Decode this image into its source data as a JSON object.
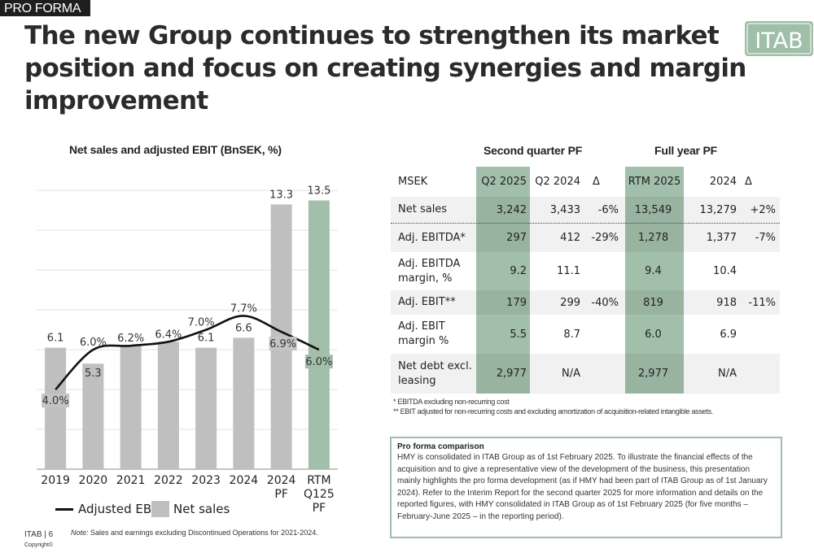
{
  "header": {
    "tag": "PRO FORMA",
    "headline": "The new Group continues to strengthen its market position and focus on creating synergies and margin improvement",
    "logo_text": "ITAB"
  },
  "colors": {
    "accent_green": "#a1bfaa",
    "bar_grey": "#bfbfbf",
    "line": "#111111"
  },
  "chart_data": {
    "type": "bar",
    "title": "Net sales and adjusted EBIT (BnSEK, %)",
    "categories": [
      "2019",
      "2020",
      "2021",
      "2022",
      "2023",
      "2024",
      "2024 PF",
      "RTM Q125 PF"
    ],
    "series": [
      {
        "name": "Net sales",
        "type": "bar",
        "values": [
          6.1,
          5.3,
          6.2,
          6.4,
          6.1,
          6.6,
          13.3,
          13.5
        ],
        "labels": [
          "6.1",
          "5.3",
          "",
          "",
          "6.1",
          "6.6",
          "13.3",
          "13.5"
        ],
        "colors": [
          "#bfbfbf",
          "#bfbfbf",
          "#bfbfbf",
          "#bfbfbf",
          "#bfbfbf",
          "#bfbfbf",
          "#bfbfbf",
          "#a1bfaa"
        ]
      },
      {
        "name": "Adjusted EBIT",
        "type": "line",
        "values": [
          4.0,
          6.0,
          6.2,
          6.4,
          7.0,
          7.7,
          6.9,
          6.0
        ],
        "labels": [
          "4.0%",
          "6.0%",
          "6.2%",
          "6.4%",
          "7.0%",
          "7.7%",
          "6.9%",
          "6.0%"
        ]
      }
    ],
    "ylim": [
      0,
      14.5
    ],
    "grid": true,
    "legend_position": "bottom"
  },
  "legend": {
    "line_label": "Adjusted EBIT",
    "bar_label": "Net sales"
  },
  "note": {
    "prefix": "Note:",
    "text": "Sales and earnings excluding Discontinued Operations for 2021-2024."
  },
  "footer": {
    "page": "ITAB | 6",
    "copyright": "Copyright©"
  },
  "table": {
    "groups": {
      "quarter": "Second quarter PF",
      "full_year": "Full year PF"
    },
    "header": {
      "label": "MSEK",
      "q2_2025": "Q2 2025",
      "q2_2024": "Q2 2024",
      "delta_q": "Δ",
      "rtm_2025": "RTM 2025",
      "fy_2024": "2024",
      "delta_fy": "Δ"
    },
    "rows": [
      {
        "label": "Net sales",
        "q2_2025": "3,242",
        "q2_2024": "3,433",
        "delta_q": "-6%",
        "rtm_2025": "13,549",
        "fy_2024": "13,279",
        "delta_fy": "+2%"
      },
      {
        "label": "Adj. EBITDA*",
        "q2_2025": "297",
        "q2_2024": "412",
        "delta_q": "-29%",
        "rtm_2025": "1,278",
        "fy_2024": "1,377",
        "delta_fy": "-7%"
      },
      {
        "label": "Adj. EBITDA margin, %",
        "q2_2025": "9.2",
        "q2_2024": "11.1",
        "delta_q": "",
        "rtm_2025": "9.4",
        "fy_2024": "10.4",
        "delta_fy": ""
      },
      {
        "label": "Adj. EBIT**",
        "q2_2025": "179",
        "q2_2024": "299",
        "delta_q": "-40%",
        "rtm_2025": "819",
        "fy_2024": "918",
        "delta_fy": "-11%"
      },
      {
        "label": "Adj. EBIT margin %",
        "q2_2025": "5.5",
        "q2_2024": "8.7",
        "delta_q": "",
        "rtm_2025": "6.0",
        "fy_2024": "6.9",
        "delta_fy": ""
      },
      {
        "label": "Net debt excl. leasing",
        "q2_2025": "2,977",
        "q2_2024": "N/A",
        "delta_q": "",
        "rtm_2025": "2,977",
        "fy_2024": "N/A",
        "delta_fy": ""
      }
    ],
    "footnotes": [
      "* EBITDA excluding non-recurring cost",
      "** EBIT adjusted for non-recurring costs and excluding amortization of acquisition-related intangible assets."
    ]
  },
  "pro_forma_box": {
    "title": "Pro forma comparison",
    "text": "HMY is consolidated in ITAB Group as of 1st February 2025. To illustrate the financial effects of the acquisition and to give a representative view of the development of the business, this presentation mainly highlights the pro forma development (as if HMY had been part of ITAB Group as of 1st January 2024). Refer to the Interim Report for the second quarter 2025 for more information and details on the reported figures, with HMY consolidated in ITAB Group as of 1st February 2025 (for five months – February-June 2025 – in the reporting period)."
  }
}
